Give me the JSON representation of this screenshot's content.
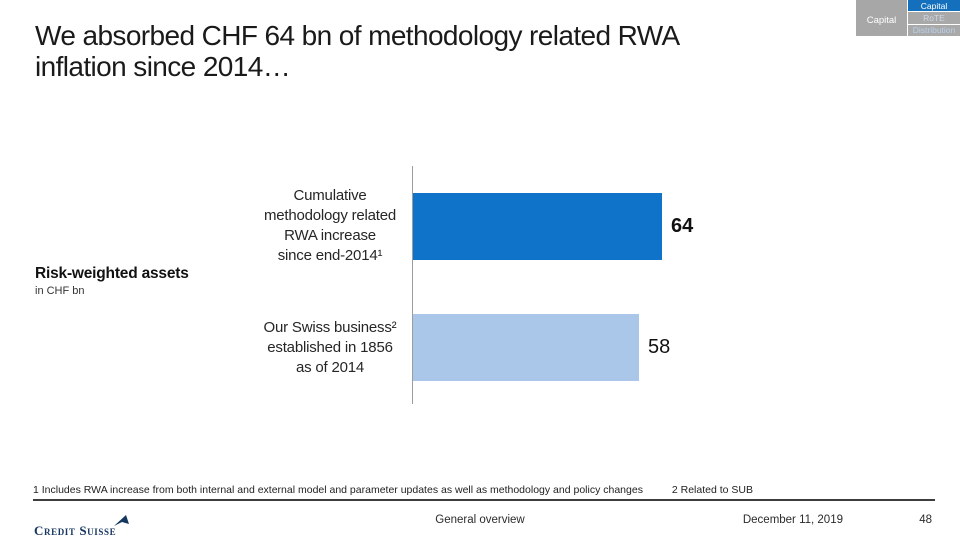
{
  "slide": {
    "title": "We absorbed CHF 64 bn of methodology related RWA inflation since 2014…"
  },
  "nav": {
    "section_label": "Capital",
    "active_color": "#1470bd",
    "inactive_color": "#a9a9a9",
    "tabs": [
      {
        "label": "Capital",
        "active": true
      },
      {
        "label": "RoTE",
        "active": false
      },
      {
        "label": "Distribution",
        "active": false
      }
    ]
  },
  "chart_data": {
    "type": "bar",
    "orientation": "horizontal",
    "title": "Risk-weighted assets",
    "unit_label": "in CHF bn",
    "categories": [
      "Cumulative\nmethodology related\nRWA increase\nsince end-2014¹",
      "Our Swiss business²\nestablished in 1856\nas of 2014"
    ],
    "values": [
      64,
      58
    ],
    "colors": [
      "#0e73c9",
      "#aac6e8"
    ],
    "value_emphasis": [
      true,
      false
    ],
    "xlim": [
      0,
      64
    ],
    "grid": false,
    "legend": false
  },
  "footnotes": {
    "note1": "1 Includes RWA increase from both internal and external model and parameter updates as well as methodology and policy changes",
    "note2": "2 Related to SUB"
  },
  "footer": {
    "brand": "Credit Suisse",
    "section": "General overview",
    "date": "December 11, 2019",
    "page": "48"
  }
}
